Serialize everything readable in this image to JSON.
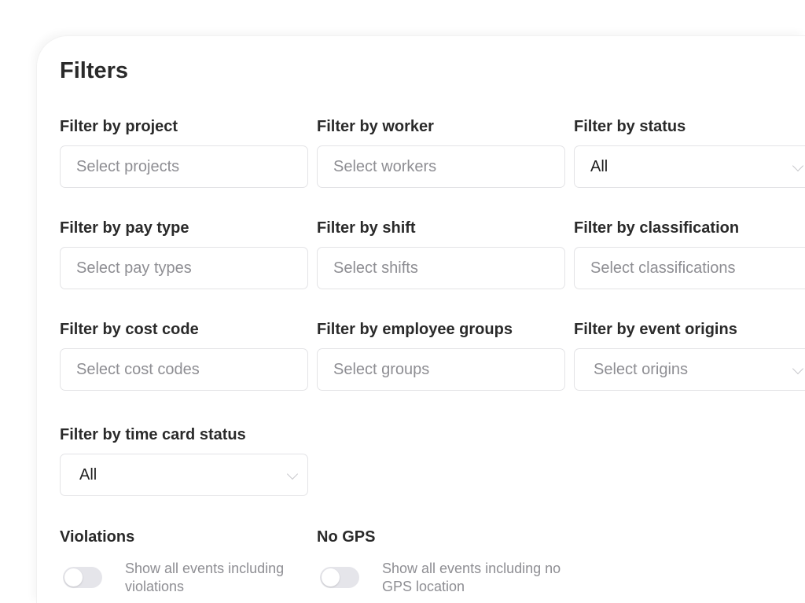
{
  "title": "Filters",
  "filters": [
    {
      "label": "Filter by project",
      "placeholder": "Select projects"
    },
    {
      "label": "Filter by worker",
      "placeholder": "Select workers"
    },
    {
      "label": "Filter by status",
      "value": "All"
    },
    {
      "label": "Filter by pay type",
      "placeholder": "Select pay types"
    },
    {
      "label": "Filter by shift",
      "placeholder": "Select shifts"
    },
    {
      "label": "Filter by classification",
      "placeholder": "Select classifications"
    },
    {
      "label": "Filter by cost code",
      "placeholder": "Select cost codes"
    },
    {
      "label": "Filter by employee groups",
      "placeholder": "Select groups"
    },
    {
      "label": "Filter by event origins",
      "placeholder": "Select origins"
    },
    {
      "label": "Filter by time card status",
      "value": "All"
    }
  ],
  "toggles": [
    {
      "label": "Violations",
      "description": "Show all events including violations",
      "on": false
    },
    {
      "label": "No GPS",
      "description": "Show all events including no GPS location",
      "on": false
    }
  ]
}
